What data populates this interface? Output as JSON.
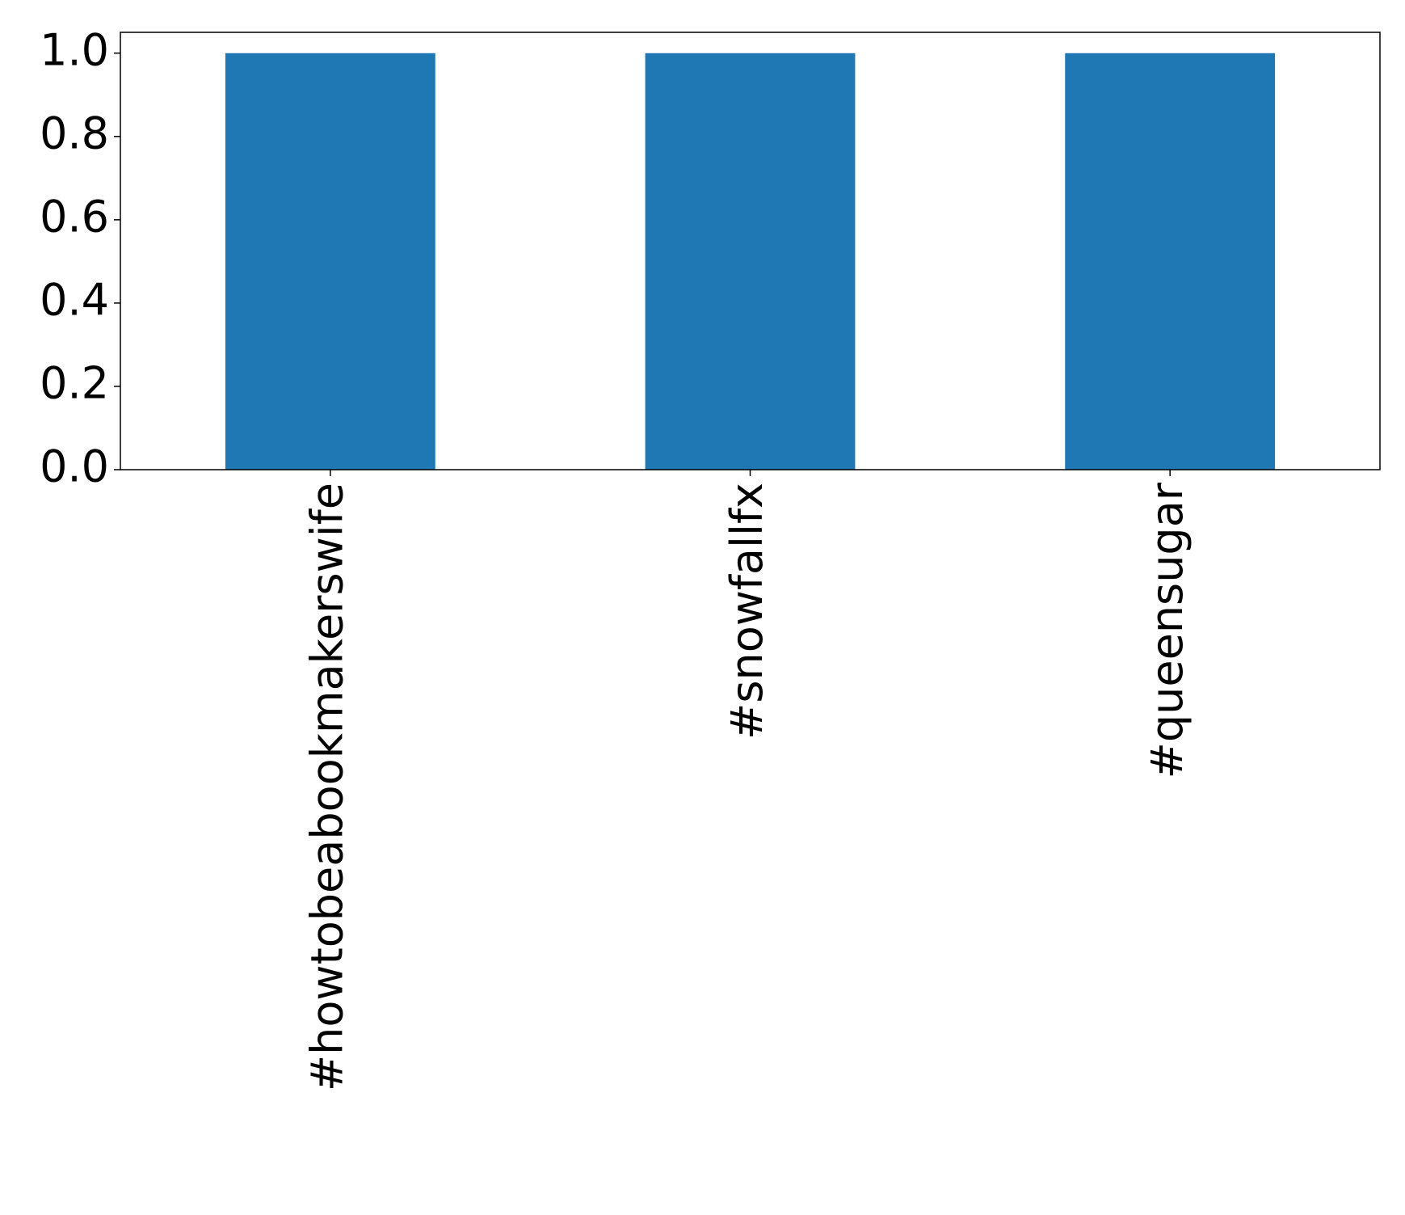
{
  "chart_data": {
    "type": "bar",
    "categories": [
      "#howtobeabookmakerswife",
      "#snowfallfx",
      "#queensugar"
    ],
    "values": [
      1,
      1,
      1
    ],
    "color": "#1f77b4",
    "ylim": [
      0,
      1.05
    ],
    "yticks": [
      {
        "value": 0,
        "label": "0.0"
      },
      0.2,
      0.4,
      0.6,
      0.8,
      {
        "value": 1,
        "label": "1.0"
      }
    ],
    "grid": false
  }
}
